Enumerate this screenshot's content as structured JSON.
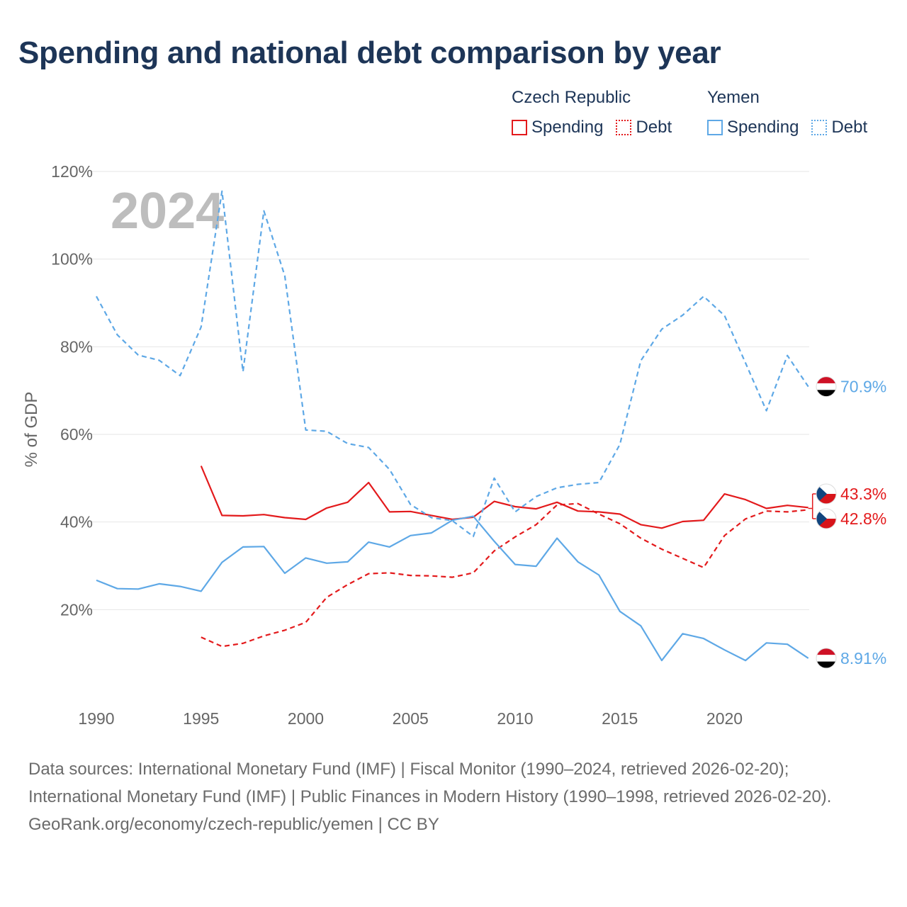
{
  "title": "Spending and national debt comparison by year",
  "colors": {
    "czech": "#e31a1c",
    "yemen": "#5ea8e6",
    "grid": "#e6e6e6",
    "axis_text": "#666666",
    "title": "#1d3557"
  },
  "legend": {
    "groups": [
      {
        "name": "Czech Republic",
        "spending_label": "Spending",
        "debt_label": "Debt"
      },
      {
        "name": "Yemen",
        "spending_label": "Spending",
        "debt_label": "Debt"
      }
    ]
  },
  "year_label": "2024",
  "end_labels": {
    "yemen_debt": "70.9%",
    "czech_spending": "43.3%",
    "czech_debt": "42.8%",
    "yemen_spending": "8.91%"
  },
  "chart_data": {
    "type": "line",
    "title": "Spending and national debt comparison by year",
    "xlabel": "",
    "ylabel": "% of GDP",
    "xlim": [
      1990,
      2024
    ],
    "ylim": [
      0,
      120
    ],
    "x_ticks": [
      1990,
      1995,
      2000,
      2005,
      2010,
      2015,
      2020
    ],
    "x_tick_labels": [
      "1990",
      "1995",
      "2000",
      "2005",
      "2010",
      "2015",
      "2020"
    ],
    "y_ticks": [
      20,
      40,
      60,
      80,
      100,
      120
    ],
    "y_tick_labels": [
      "20%",
      "40%",
      "60%",
      "80%",
      "100%",
      "120%"
    ],
    "grid": true,
    "series": [
      {
        "name": "Czech Republic Spending",
        "country": "czech",
        "style": "solid",
        "x": [
          1995,
          1996,
          1997,
          1998,
          1999,
          2000,
          2001,
          2002,
          2003,
          2004,
          2005,
          2006,
          2007,
          2008,
          2009,
          2010,
          2011,
          2012,
          2013,
          2014,
          2015,
          2016,
          2017,
          2018,
          2019,
          2020,
          2021,
          2022,
          2023,
          2024
        ],
        "values": [
          52.8,
          41.5,
          41.4,
          41.7,
          41.0,
          40.6,
          43.2,
          44.5,
          49.0,
          42.3,
          42.4,
          41.5,
          40.6,
          41.1,
          44.7,
          43.5,
          43.0,
          44.5,
          42.5,
          42.3,
          41.8,
          39.4,
          38.6,
          40.1,
          40.4,
          46.4,
          45.1,
          43.1,
          43.8,
          43.3
        ]
      },
      {
        "name": "Czech Republic Debt",
        "country": "czech",
        "style": "dashed",
        "x": [
          1995,
          1996,
          1997,
          1998,
          1999,
          2000,
          2001,
          2002,
          2003,
          2004,
          2005,
          2006,
          2007,
          2008,
          2009,
          2010,
          2011,
          2012,
          2013,
          2014,
          2015,
          2016,
          2017,
          2018,
          2019,
          2020,
          2021,
          2022,
          2023,
          2024
        ],
        "values": [
          13.7,
          11.6,
          12.3,
          14.0,
          15.3,
          17.1,
          22.8,
          25.7,
          28.2,
          28.4,
          27.8,
          27.7,
          27.4,
          28.4,
          33.4,
          36.6,
          39.4,
          43.9,
          44.2,
          41.8,
          39.6,
          36.3,
          33.8,
          31.7,
          29.6,
          36.9,
          40.7,
          42.5,
          42.3,
          42.8
        ]
      },
      {
        "name": "Yemen Spending",
        "country": "yemen",
        "style": "solid",
        "x": [
          1990,
          1991,
          1992,
          1993,
          1994,
          1995,
          1996,
          1997,
          1998,
          1999,
          2000,
          2001,
          2002,
          2003,
          2004,
          2005,
          2006,
          2007,
          2008,
          2009,
          2010,
          2011,
          2012,
          2013,
          2014,
          2015,
          2016,
          2017,
          2018,
          2019,
          2020,
          2021,
          2022,
          2023,
          2024
        ],
        "values": [
          26.7,
          24.8,
          24.7,
          25.9,
          25.3,
          24.2,
          30.8,
          34.3,
          34.4,
          28.3,
          31.8,
          30.6,
          30.9,
          35.4,
          34.3,
          36.9,
          37.5,
          40.4,
          41.3,
          35.6,
          30.3,
          29.9,
          36.3,
          30.9,
          27.9,
          19.6,
          16.3,
          8.4,
          14.5,
          13.4,
          10.8,
          8.4,
          12.4,
          12.1,
          8.91
        ]
      },
      {
        "name": "Yemen Debt",
        "country": "yemen",
        "style": "dashed",
        "x": [
          1990,
          1991,
          1992,
          1993,
          1994,
          1995,
          1996,
          1997,
          1998,
          1999,
          2000,
          2001,
          2002,
          2003,
          2004,
          2005,
          2006,
          2007,
          2008,
          2009,
          2010,
          2011,
          2012,
          2013,
          2014,
          2015,
          2016,
          2017,
          2018,
          2019,
          2020,
          2021,
          2022,
          2023,
          2024
        ],
        "values": [
          91.5,
          82.7,
          78.1,
          76.9,
          73.4,
          84.5,
          115.5,
          74.3,
          111.0,
          96.2,
          61.0,
          60.7,
          57.9,
          57.0,
          52.0,
          44.0,
          41.0,
          40.3,
          36.7,
          50.0,
          42.3,
          45.8,
          47.8,
          48.6,
          49.0,
          57.7,
          76.8,
          84.0,
          87.2,
          91.5,
          87.1,
          76.3,
          65.4,
          78.0,
          70.9
        ]
      }
    ]
  },
  "sources": {
    "line1": "Data sources: International Monetary Fund (IMF) | Fiscal Monitor (1990–2024, retrieved 2026-02-20);",
    "line2": "International Monetary Fund (IMF) | Public Finances in Modern History (1990–1998, retrieved 2026-02-20).",
    "attribution": "GeoRank.org/economy/czech-republic/yemen | CC BY"
  }
}
